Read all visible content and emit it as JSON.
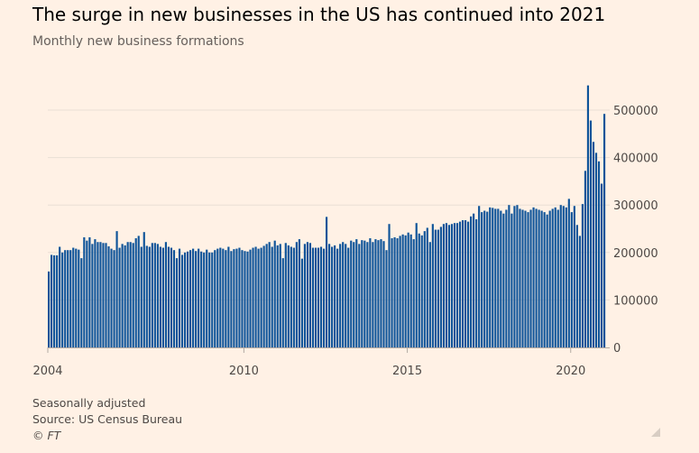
{
  "chart_data": {
    "type": "bar",
    "title": "The surge in new businesses in the US has continued into 2021",
    "subtitle": "Monthly new business formations",
    "start": "2004-01",
    "frequency": "monthly",
    "x_tick_labels": [
      {
        "label": "2004",
        "index": 0
      },
      {
        "label": "2010",
        "index": 72
      },
      {
        "label": "2015",
        "index": 132
      },
      {
        "label": "2020",
        "index": 192
      }
    ],
    "y_tick_labels": [
      "0",
      "100000",
      "200000",
      "300000",
      "400000",
      "500000"
    ],
    "y_ticks": [
      0,
      100000,
      200000,
      300000,
      400000,
      500000
    ],
    "ylim": [
      0,
      500000
    ],
    "xlabel": "",
    "ylabel": "",
    "grid": true,
    "y_axis_position": "right",
    "bar_color": "#0f5499",
    "values_thousands": [
      160,
      195,
      194,
      194,
      212,
      200,
      205,
      205,
      205,
      210,
      208,
      206,
      188,
      232,
      225,
      232,
      218,
      228,
      222,
      222,
      220,
      220,
      213,
      208,
      205,
      245,
      210,
      218,
      215,
      222,
      222,
      220,
      230,
      235,
      212,
      243,
      214,
      212,
      220,
      220,
      218,
      212,
      210,
      222,
      212,
      210,
      205,
      188,
      208,
      195,
      200,
      202,
      205,
      208,
      203,
      208,
      202,
      200,
      206,
      200,
      200,
      205,
      208,
      210,
      208,
      205,
      212,
      203,
      207,
      208,
      210,
      205,
      203,
      202,
      206,
      210,
      212,
      208,
      210,
      214,
      218,
      222,
      212,
      225,
      215,
      218,
      188,
      220,
      215,
      212,
      210,
      222,
      228,
      187,
      218,
      222,
      220,
      210,
      210,
      210,
      212,
      208,
      275,
      218,
      212,
      215,
      208,
      218,
      222,
      218,
      210,
      225,
      222,
      228,
      218,
      226,
      225,
      222,
      230,
      222,
      228,
      226,
      228,
      224,
      205,
      260,
      230,
      232,
      230,
      235,
      238,
      236,
      242,
      238,
      228,
      262,
      240,
      236,
      245,
      252,
      222,
      260,
      248,
      248,
      254,
      260,
      262,
      258,
      260,
      262,
      262,
      265,
      268,
      268,
      265,
      276,
      282,
      270,
      298,
      285,
      288,
      286,
      295,
      294,
      292,
      292,
      288,
      282,
      290,
      300,
      282,
      298,
      300,
      292,
      290,
      288,
      285,
      290,
      295,
      292,
      290,
      288,
      285,
      280,
      288,
      292,
      295,
      290,
      300,
      298,
      295,
      313,
      285,
      298,
      258,
      235,
      302,
      372,
      552,
      478,
      433,
      410,
      392,
      345,
      492
    ]
  },
  "notes": {
    "adjustment": "Seasonally adjusted",
    "source": "Source: US Census Bureau",
    "copyright": "© FT"
  }
}
